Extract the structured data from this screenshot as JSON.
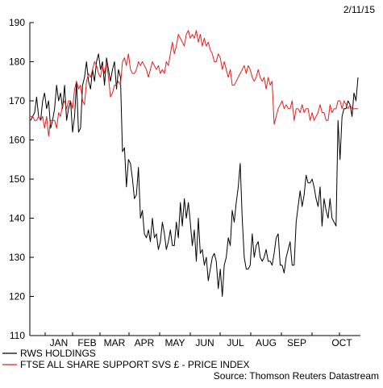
{
  "chart_data": {
    "type": "line",
    "date_label": "2/11/15",
    "source": "Source: Thomson Reuters Datastream",
    "ylim": [
      110,
      190
    ],
    "y_ticks": [
      110,
      120,
      130,
      140,
      150,
      160,
      170,
      180,
      190
    ],
    "x_ticks": [
      "JAN",
      "FEB",
      "MAR",
      "APR",
      "MAY",
      "JUN",
      "JUL",
      "AUG",
      "SEP",
      "OCT"
    ],
    "legend_position": "bottom",
    "series": [
      {
        "name": "RWS HOLDINGS",
        "color": "#000000",
        "values": [
          165,
          166,
          167,
          171,
          166,
          165,
          170,
          172,
          168,
          170,
          163,
          165,
          168,
          174,
          170,
          172,
          168,
          174,
          165,
          168,
          170,
          162,
          166,
          175,
          162,
          163,
          174,
          176,
          180,
          175,
          173,
          178,
          175,
          180,
          182,
          178,
          180,
          174,
          181,
          178,
          175,
          178,
          180,
          173,
          178,
          176,
          157,
          158,
          148,
          155,
          154,
          150,
          145,
          146,
          153,
          140,
          142,
          136,
          135,
          137,
          134,
          140,
          135,
          136,
          132,
          134,
          139,
          136,
          132,
          134,
          137,
          133,
          133,
          139,
          135,
          144,
          138,
          145,
          140,
          144,
          139,
          133,
          137,
          129,
          140,
          131,
          132,
          128,
          130,
          124,
          127,
          130,
          131,
          129,
          122,
          127,
          120,
          128,
          130,
          135,
          133,
          142,
          139,
          144,
          148,
          154,
          140,
          130,
          127,
          127,
          128,
          136,
          130,
          133,
          134,
          130,
          129,
          130,
          132,
          129,
          129,
          128,
          131,
          135,
          136,
          128,
          128,
          126,
          130,
          132,
          134,
          128,
          128,
          139,
          143,
          147,
          143,
          146,
          151,
          149,
          149,
          150,
          148,
          145,
          143,
          148,
          138,
          145,
          142,
          140,
          145,
          140,
          139,
          138,
          165,
          155,
          166,
          168,
          168,
          170,
          169,
          166,
          172,
          170,
          176
        ]
      },
      {
        "name": "FTSE ALL SHARE SUPPORT SVS £ - PRICE INDEX",
        "color": "#e0201e",
        "values": [
          166,
          166,
          165,
          165,
          166,
          165,
          166,
          163,
          166,
          161,
          165,
          165,
          165,
          163,
          167,
          166,
          169,
          170,
          168,
          170,
          170,
          168,
          173,
          175,
          173,
          174,
          170,
          169,
          175,
          177,
          176,
          178,
          180,
          179,
          177,
          176,
          179,
          177,
          180,
          176,
          171,
          172,
          174,
          174,
          175,
          174,
          180,
          181,
          179,
          182,
          178,
          177,
          177,
          178,
          180,
          179,
          180,
          179,
          178,
          176,
          178,
          180,
          179,
          178,
          179,
          177,
          178,
          177,
          180,
          179,
          182,
          185,
          182,
          184,
          187,
          186,
          185,
          184,
          187,
          188,
          186,
          187,
          186,
          188,
          185,
          187,
          184,
          186,
          184,
          185,
          183,
          182,
          180,
          180,
          182,
          181,
          178,
          180,
          178,
          176,
          178,
          174,
          174,
          175,
          176,
          177,
          178,
          179,
          177,
          179,
          178,
          176,
          175,
          176,
          178,
          176,
          175,
          176,
          173,
          176,
          174,
          175,
          164,
          166,
          168,
          169,
          170,
          168,
          169,
          168,
          168,
          170,
          165,
          168,
          168,
          167,
          169,
          167,
          168,
          168,
          165,
          167,
          165,
          166,
          167,
          169,
          167,
          167,
          165,
          165,
          169,
          167,
          168,
          168,
          170,
          170,
          168,
          170,
          169,
          168,
          169,
          168,
          168,
          168,
          168
        ]
      }
    ]
  }
}
